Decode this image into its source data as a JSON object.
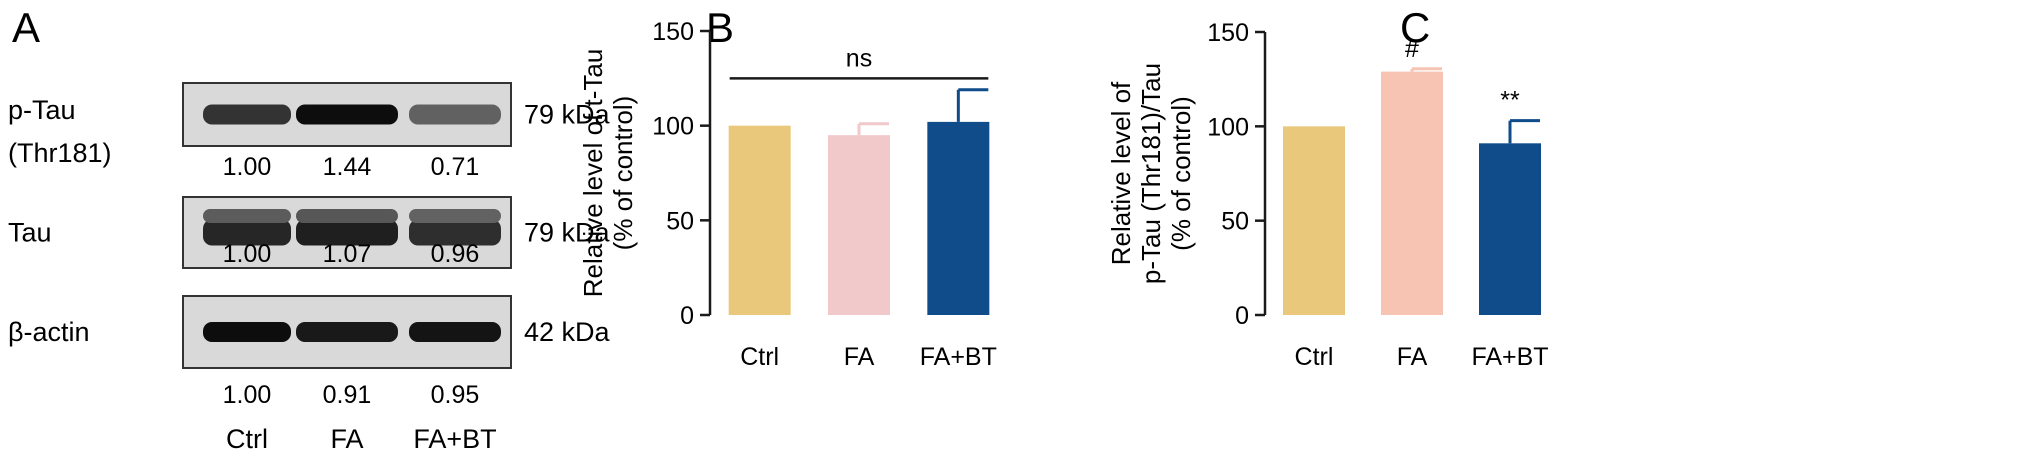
{
  "panels": {
    "a": "A",
    "b": "B",
    "c": "C"
  },
  "western_blot": {
    "rows": [
      {
        "label": "p-Tau",
        "label2": "(Thr181)",
        "size": "79 kDa",
        "quant": [
          "1.00",
          "1.44",
          "0.71"
        ],
        "intensity": [
          0.8,
          0.95,
          0.62
        ]
      },
      {
        "label": "Tau",
        "label2": "",
        "size": "79 kDa",
        "quant": [
          "1.00",
          "1.07",
          "0.96"
        ],
        "intensity": [
          0.85,
          0.88,
          0.82
        ]
      },
      {
        "label": "β-actin",
        "label2": "",
        "size": "42 kDa",
        "quant": [
          "1.00",
          "0.91",
          "0.95"
        ],
        "intensity": [
          0.95,
          0.9,
          0.92
        ]
      }
    ],
    "lanes": [
      "Ctrl",
      "FA",
      "FA+BT"
    ]
  },
  "chart_data": [
    {
      "type": "bar",
      "categories": [
        "Ctrl",
        "FA",
        "FA+BT"
      ],
      "values": [
        100,
        95,
        102
      ],
      "errors": [
        0,
        6,
        17
      ],
      "ylabel_line1": "Relative level of t-Tau",
      "ylabel_line2": "(% of control)",
      "ylim": [
        0,
        150
      ],
      "yticks": [
        0,
        50,
        100,
        150
      ],
      "colors": [
        "#E9C77B",
        "#F2C9CB",
        "#0F4C89"
      ],
      "annotations": [
        {
          "text": "ns",
          "type": "bracket",
          "from": 0,
          "to": 2,
          "y": 125
        }
      ],
      "grid": false
    },
    {
      "type": "bar",
      "categories": [
        "Ctrl",
        "FA",
        "FA+BT"
      ],
      "values": [
        100,
        129,
        91
      ],
      "errors": [
        0,
        1.5,
        12
      ],
      "ylabel_line1": "Relative level of",
      "ylabel_line2": "p-Tau (Thr181)/Tau",
      "ylabel_line3": "(% of control)",
      "ylim": [
        0,
        150
      ],
      "yticks": [
        0,
        50,
        100,
        150
      ],
      "colors": [
        "#E9C77B",
        "#F7C4B4",
        "#0F4C89"
      ],
      "annotations": [
        {
          "text": "#",
          "type": "mark",
          "bar": 1
        },
        {
          "text": "**",
          "type": "mark",
          "bar": 2
        }
      ],
      "grid": false
    }
  ]
}
